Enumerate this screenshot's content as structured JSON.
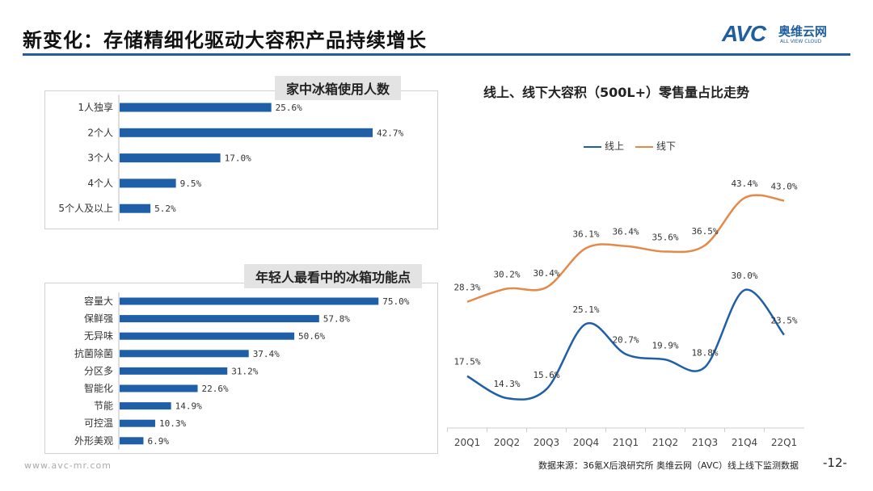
{
  "header": {
    "title": "新变化：存储精细化驱动大容积产品持续增长",
    "logo_text": "AVC",
    "logo_cn": "奥维云网",
    "logo_en": "ALL VIEW CLOUD"
  },
  "colors": {
    "bar": "#1f5fa8",
    "online": "#1f5fa8",
    "offline": "#e3894a",
    "rule": "#1f5fa0"
  },
  "chart_data": [
    {
      "type": "bar",
      "orientation": "horizontal",
      "title": "家中冰箱使用人数",
      "categories": [
        "1人独享",
        "2个人",
        "3个人",
        "4个人",
        "5个人及以上"
      ],
      "values": [
        25.6,
        42.7,
        17.0,
        9.5,
        5.2
      ],
      "labels": [
        "25.6%",
        "42.7%",
        "17.0%",
        "9.5%",
        "5.2%"
      ]
    },
    {
      "type": "bar",
      "orientation": "horizontal",
      "title": "年轻人最看中的冰箱功能点",
      "categories": [
        "容量大",
        "保鲜强",
        "无异味",
        "抗菌除菌",
        "分区多",
        "智能化",
        "节能",
        "可控温",
        "外形美观"
      ],
      "values": [
        75.0,
        57.8,
        50.6,
        37.4,
        31.2,
        22.6,
        14.9,
        10.3,
        6.9
      ],
      "labels": [
        "75.0%",
        "57.8%",
        "50.6%",
        "37.4%",
        "31.2%",
        "22.6%",
        "14.9%",
        "10.3%",
        "6.9%"
      ]
    },
    {
      "type": "line",
      "title": "线上、线下大容积（500L+）零售量占比走势",
      "categories": [
        "20Q1",
        "20Q2",
        "20Q3",
        "20Q4",
        "21Q1",
        "21Q2",
        "21Q3",
        "21Q4",
        "22Q1"
      ],
      "series": [
        {
          "name": "线上",
          "values": [
            17.5,
            14.3,
            15.6,
            25.1,
            20.7,
            19.9,
            18.8,
            30.0,
            23.5
          ],
          "labels": [
            "17.5%",
            "14.3%",
            "15.6%",
            "25.1%",
            "20.7%",
            "19.9%",
            "18.8%",
            "30.0%",
            "23.5%"
          ]
        },
        {
          "name": "线下",
          "values": [
            28.3,
            30.2,
            30.4,
            36.1,
            36.4,
            35.6,
            36.5,
            43.4,
            43.0
          ],
          "labels": [
            "28.3%",
            "30.2%",
            "30.4%",
            "36.1%",
            "36.4%",
            "35.6%",
            "36.5%",
            "43.4%",
            "43.0%"
          ]
        }
      ],
      "legend": "top"
    }
  ],
  "footer": {
    "source": "数据来源：36氪X后浪研究所 奥维云网（AVC）线上线下监测数据",
    "page": "-12-",
    "url": "www.avc-mr.com"
  }
}
